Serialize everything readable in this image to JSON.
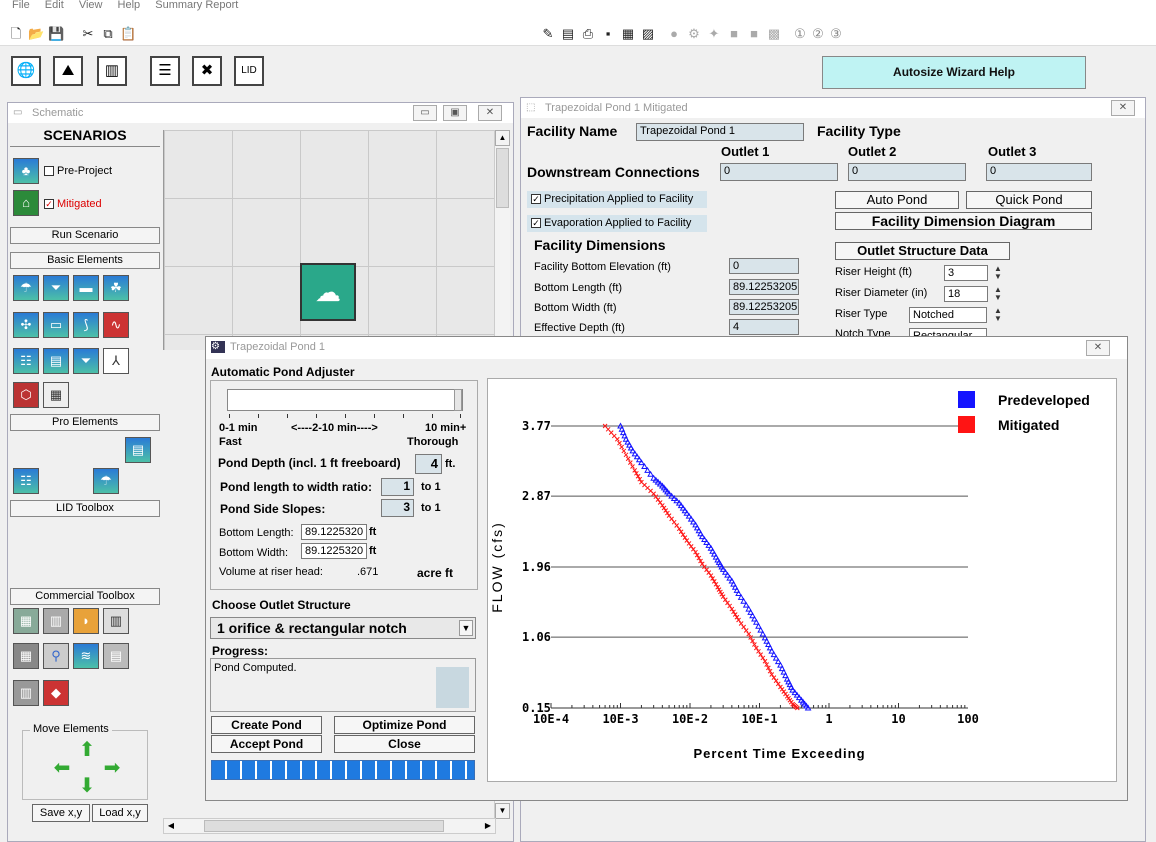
{
  "menu": [
    "File",
    "Edit",
    "View",
    "Help",
    "Summary Report"
  ],
  "toolbar_circled": [
    "①",
    "②",
    "③"
  ],
  "wizard_help_label": "Autosize Wizard Help",
  "schematic": {
    "title": "Schematic",
    "scenarios_header": "SCENARIOS",
    "pre_project_label": "Pre-Project",
    "mitigated_label": "Mitigated",
    "pre_project_checked": false,
    "mitigated_checked": true,
    "run_scenario": "Run Scenario",
    "basic_elements": "Basic Elements",
    "pro_elements": "Pro Elements",
    "lid_toolbox": "LID Toolbox",
    "commercial_toolbox": "Commercial Toolbox",
    "move_elements": "Move Elements",
    "save_xy": "Save x,y",
    "load_xy": "Load x,y"
  },
  "facility": {
    "title": "Trapezoidal Pond  1 Mitigated",
    "facility_name_label": "Facility Name",
    "facility_name_value": "Trapezoidal Pond  1",
    "facility_type_label": "Facility Type",
    "outlet1": "Outlet 1",
    "outlet2": "Outlet 2",
    "outlet3": "Outlet 3",
    "downstream_label": "Downstream Connections",
    "downstream_values": [
      "0",
      "0",
      "0"
    ],
    "precip_label": "Precipitation Applied to Facility",
    "evap_label": "Evaporation Applied to Facility",
    "auto_pond": "Auto Pond",
    "quick_pond": "Quick Pond",
    "dimension_diagram": "Facility Dimension Diagram",
    "dimensions_header": "Facility Dimensions",
    "bottom_elev_label": "Facility Bottom Elevation (ft)",
    "bottom_elev_value": "0",
    "bottom_length_label": "Bottom Length (ft)",
    "bottom_length_value": "89.12253205",
    "bottom_width_label": "Bottom Width (ft)",
    "bottom_width_value": "89.12253205",
    "eff_depth_label": "Effective Depth (ft)",
    "eff_depth_value": "4",
    "outlet_structure_header": "Outlet Structure Data",
    "riser_height_label": "Riser Height (ft)",
    "riser_height_value": "3",
    "riser_diameter_label": "Riser Diameter (in)",
    "riser_diameter_value": "18",
    "riser_type_label": "Riser Type",
    "riser_type_value": "Notched",
    "notch_type_label": "Notch Type",
    "notch_type_value": "Rectangular"
  },
  "adjuster": {
    "title": "Trapezoidal Pond  1",
    "header": "Automatic Pond Adjuster",
    "slider_min": "0-1 min",
    "slider_mid": "<----2-10 min---->",
    "slider_max": "10 min+",
    "fast": "Fast",
    "thorough": "Thorough",
    "pond_depth_label": "Pond Depth (incl. 1 ft freeboard)",
    "pond_depth_value": "4",
    "pond_depth_unit": "ft.",
    "ratio_label": "Pond length to width ratio:",
    "ratio_value": "1",
    "ratio_unit": "to 1",
    "slopes_label": "Pond Side Slopes:",
    "slopes_value": "3",
    "slopes_unit": "to 1",
    "bottom_length_label": "Bottom Length:",
    "bottom_length_value": "89.1225320",
    "bottom_width_label": "Bottom Width:",
    "bottom_width_value": "89.1225320",
    "ft": "ft",
    "volume_label": "Volume at riser head:",
    "volume_value": ".671",
    "volume_unit": "acre ft",
    "outlet_header": "Choose Outlet Structure",
    "outlet_value": "1 orifice & rectangular notch",
    "progress_header": "Progress:",
    "progress_text": "Pond Computed.",
    "create_pond": "Create Pond",
    "optimize_pond": "Optimize Pond",
    "accept_pond": "Accept Pond",
    "close": "Close",
    "progress_fraction": 1.0
  },
  "chart_data": {
    "type": "scatter",
    "xlabel": "Percent Time Exceeding",
    "ylabel": "FLOW (cfs)",
    "x_scale": "log",
    "x_ticks": [
      "10E-4",
      "10E-3",
      "10E-2",
      "10E-1",
      "1",
      "10",
      "100"
    ],
    "y_ticks": [
      "3.77",
      "2.87",
      "1.96",
      "1.06",
      "0.15"
    ],
    "ylim": [
      0.15,
      3.77
    ],
    "legend_position": "top-right",
    "series": [
      {
        "name": "Predeveloped",
        "color": "#1414ff",
        "points": [
          [
            0.001,
            3.77
          ],
          [
            0.0012,
            3.6
          ],
          [
            0.0015,
            3.45
          ],
          [
            0.002,
            3.3
          ],
          [
            0.003,
            3.1
          ],
          [
            0.004,
            3.0
          ],
          [
            0.005,
            2.9
          ],
          [
            0.007,
            2.78
          ],
          [
            0.009,
            2.65
          ],
          [
            0.012,
            2.5
          ],
          [
            0.015,
            2.35
          ],
          [
            0.02,
            2.2
          ],
          [
            0.025,
            2.05
          ],
          [
            0.03,
            1.93
          ],
          [
            0.04,
            1.78
          ],
          [
            0.05,
            1.62
          ],
          [
            0.07,
            1.42
          ],
          [
            0.09,
            1.25
          ],
          [
            0.12,
            1.05
          ],
          [
            0.15,
            0.88
          ],
          [
            0.2,
            0.7
          ],
          [
            0.25,
            0.52
          ],
          [
            0.3,
            0.38
          ],
          [
            0.4,
            0.25
          ],
          [
            0.5,
            0.15
          ]
        ]
      },
      {
        "name": "Mitigated",
        "color": "#ff1414",
        "points": [
          [
            0.0006,
            3.77
          ],
          [
            0.0009,
            3.6
          ],
          [
            0.0012,
            3.4
          ],
          [
            0.0016,
            3.2
          ],
          [
            0.002,
            3.05
          ],
          [
            0.003,
            2.9
          ],
          [
            0.004,
            2.75
          ],
          [
            0.005,
            2.62
          ],
          [
            0.007,
            2.45
          ],
          [
            0.009,
            2.3
          ],
          [
            0.012,
            2.15
          ],
          [
            0.015,
            2.0
          ],
          [
            0.02,
            1.85
          ],
          [
            0.025,
            1.7
          ],
          [
            0.03,
            1.58
          ],
          [
            0.04,
            1.42
          ],
          [
            0.05,
            1.28
          ],
          [
            0.07,
            1.1
          ],
          [
            0.09,
            0.92
          ],
          [
            0.12,
            0.75
          ],
          [
            0.15,
            0.58
          ],
          [
            0.2,
            0.42
          ],
          [
            0.25,
            0.3
          ],
          [
            0.3,
            0.2
          ],
          [
            0.35,
            0.15
          ]
        ]
      }
    ]
  }
}
